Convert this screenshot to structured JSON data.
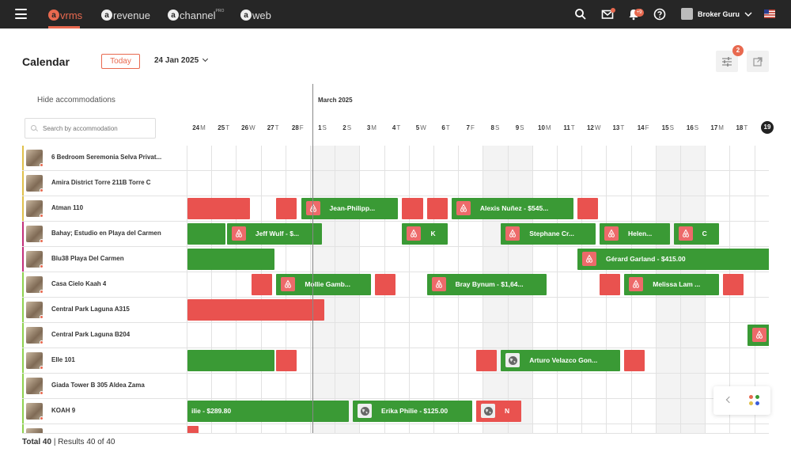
{
  "topbar": {
    "brands": [
      {
        "logo": "a",
        "label": "vrms",
        "sup": ""
      },
      {
        "logo": "a",
        "label": "revenue",
        "sup": ""
      },
      {
        "logo": "a",
        "label": "channel",
        "sup": "PRO"
      },
      {
        "logo": "a",
        "label": "web",
        "sup": ""
      }
    ],
    "notifications_count": "+9",
    "user_name": "Broker Guru",
    "icons": [
      "search-icon",
      "mail-icon",
      "bell-icon",
      "help-icon",
      "flag-us-icon"
    ]
  },
  "page": {
    "title": "Calendar",
    "today_label": "Today",
    "date_label": "24 Jan 2025",
    "filter_badge": "2"
  },
  "sidebar": {
    "hide_label": "Hide accommodations",
    "search_placeholder": "Search by accommodation",
    "accommodations": [
      {
        "name": "6 Bedroom Seremonia Selva Privat...",
        "color": "#e0c04a"
      },
      {
        "name": "Amira District Torre 211B Torre C",
        "color": "#e0c04a"
      },
      {
        "name": "Atman 110",
        "color": "#e0c04a"
      },
      {
        "name": "Bahay; Estudio en Playa del Carmen",
        "color": "#c2307a"
      },
      {
        "name": "Blu38 Playa Del Carmen",
        "color": "#c2307a"
      },
      {
        "name": "Casa Cielo Kaah 4",
        "color": "#8fd14f"
      },
      {
        "name": "Central Park Laguna A315",
        "color": "#8fd14f"
      },
      {
        "name": "Central Park Laguna B204",
        "color": "#8fd14f"
      },
      {
        "name": "Elle 101",
        "color": "#8fd14f"
      },
      {
        "name": "Giada Tower B 305 Aldea Zama",
        "color": "#8fd14f"
      },
      {
        "name": "KOAH 9",
        "color": "#8fd14f"
      },
      {
        "name": "",
        "color": "#8fd14f"
      }
    ]
  },
  "calendar": {
    "month_label": "March 2025",
    "days": [
      {
        "d": "24",
        "w": "M"
      },
      {
        "d": "25",
        "w": "T"
      },
      {
        "d": "26",
        "w": "W"
      },
      {
        "d": "27",
        "w": "T"
      },
      {
        "d": "28",
        "w": "F"
      },
      {
        "d": "1",
        "w": "S"
      },
      {
        "d": "2",
        "w": "S"
      },
      {
        "d": "3",
        "w": "M"
      },
      {
        "d": "4",
        "w": "T"
      },
      {
        "d": "5",
        "w": "W"
      },
      {
        "d": "6",
        "w": "T"
      },
      {
        "d": "7",
        "w": "F"
      },
      {
        "d": "8",
        "w": "S"
      },
      {
        "d": "9",
        "w": "S"
      },
      {
        "d": "10",
        "w": "M"
      },
      {
        "d": "11",
        "w": "T"
      },
      {
        "d": "12",
        "w": "W"
      },
      {
        "d": "13",
        "w": "T"
      },
      {
        "d": "14",
        "w": "F"
      },
      {
        "d": "15",
        "w": "S"
      },
      {
        "d": "16",
        "w": "S"
      },
      {
        "d": "17",
        "w": "M"
      },
      {
        "d": "18",
        "w": "T"
      }
    ],
    "today_day": "19",
    "bookings": [
      {
        "row": 2,
        "start": 0,
        "span": 2.6,
        "color": "red",
        "label": "",
        "source": ""
      },
      {
        "row": 2,
        "start": 3.6,
        "span": 0.9,
        "color": "red",
        "label": "",
        "source": ""
      },
      {
        "row": 2,
        "start": 4.6,
        "span": 4.0,
        "color": "green",
        "label": "Jean-Philipp...",
        "source": "airbnb"
      },
      {
        "row": 2,
        "start": 8.7,
        "span": 0.9,
        "color": "red",
        "label": "",
        "source": ""
      },
      {
        "row": 2,
        "start": 9.7,
        "span": 0.9,
        "color": "red",
        "label": "",
        "source": ""
      },
      {
        "row": 2,
        "start": 10.7,
        "span": 5.0,
        "color": "green",
        "label": "Alexis Nuñez - $545...",
        "source": "airbnb"
      },
      {
        "row": 2,
        "start": 15.8,
        "span": 0.9,
        "color": "red",
        "label": "",
        "source": ""
      },
      {
        "row": 3,
        "start": 0,
        "span": 1.6,
        "color": "green",
        "label": "",
        "source": ""
      },
      {
        "row": 3,
        "start": 1.6,
        "span": 3.9,
        "color": "green",
        "label": "Jeff Wulf - $...",
        "source": "airbnb"
      },
      {
        "row": 3,
        "start": 8.7,
        "span": 1.9,
        "color": "green",
        "label": "K",
        "source": "airbnb"
      },
      {
        "row": 3,
        "start": 12.7,
        "span": 3.9,
        "color": "green",
        "label": "Stephane Cr...",
        "source": "airbnb"
      },
      {
        "row": 3,
        "start": 16.7,
        "span": 2.9,
        "color": "green",
        "label": "Helen...",
        "source": "airbnb"
      },
      {
        "row": 3,
        "start": 19.7,
        "span": 1.9,
        "color": "green",
        "label": "C",
        "source": "airbnb"
      },
      {
        "row": 4,
        "start": 0,
        "span": 3.6,
        "color": "green",
        "label": "",
        "source": ""
      },
      {
        "row": 4,
        "start": 15.8,
        "span": 8.0,
        "color": "green",
        "label": "Gérard Garland - $415.00",
        "source": "airbnb"
      },
      {
        "row": 5,
        "start": 2.6,
        "span": 0.9,
        "color": "red",
        "label": "",
        "source": ""
      },
      {
        "row": 5,
        "start": 3.6,
        "span": 3.9,
        "color": "green",
        "label": "Mollie Gamb...",
        "source": "airbnb"
      },
      {
        "row": 5,
        "start": 7.6,
        "span": 0.9,
        "color": "red",
        "label": "",
        "source": ""
      },
      {
        "row": 5,
        "start": 9.7,
        "span": 4.9,
        "color": "green",
        "label": "Bray Bynum - $1,64...",
        "source": "airbnb"
      },
      {
        "row": 5,
        "start": 16.7,
        "span": 0.9,
        "color": "red",
        "label": "",
        "source": ""
      },
      {
        "row": 5,
        "start": 17.7,
        "span": 3.9,
        "color": "green",
        "label": "Melissa Lam ...",
        "source": "airbnb"
      },
      {
        "row": 5,
        "start": 21.7,
        "span": 0.9,
        "color": "red",
        "label": "",
        "source": ""
      },
      {
        "row": 6,
        "start": 0,
        "span": 5.6,
        "color": "red",
        "label": "",
        "source": ""
      },
      {
        "row": 7,
        "start": 22.7,
        "span": 2,
        "color": "green",
        "label": "",
        "source": "airbnb"
      },
      {
        "row": 8,
        "start": 0,
        "span": 3.6,
        "color": "green",
        "label": "",
        "source": ""
      },
      {
        "row": 8,
        "start": 3.6,
        "span": 0.9,
        "color": "red",
        "label": "",
        "source": ""
      },
      {
        "row": 8,
        "start": 11.7,
        "span": 0.9,
        "color": "red",
        "label": "",
        "source": ""
      },
      {
        "row": 8,
        "start": 12.7,
        "span": 4.9,
        "color": "green",
        "label": "Arturo Velazco Gon...",
        "source": "web"
      },
      {
        "row": 8,
        "start": 17.7,
        "span": 0.9,
        "color": "red",
        "label": "",
        "source": ""
      },
      {
        "row": 10,
        "start": 0,
        "span": 6.6,
        "color": "green",
        "label": "ilie - $289.80",
        "source": ""
      },
      {
        "row": 10,
        "start": 6.7,
        "span": 4.9,
        "color": "green",
        "label": "Erika Philie - $125.00",
        "source": "web"
      },
      {
        "row": 10,
        "start": 11.7,
        "span": 1.9,
        "color": "red",
        "label": "N",
        "source": "web"
      },
      {
        "row": 11,
        "start": 0,
        "span": 0.5,
        "color": "red",
        "label": "",
        "source": ""
      }
    ]
  },
  "footer": {
    "total_label": "Total 40",
    "results_label": "| Results 40 of 40"
  },
  "colors": {
    "accent": "#e8694f",
    "booked_green": "#3a9a35",
    "blocked_red": "#e9524f"
  }
}
